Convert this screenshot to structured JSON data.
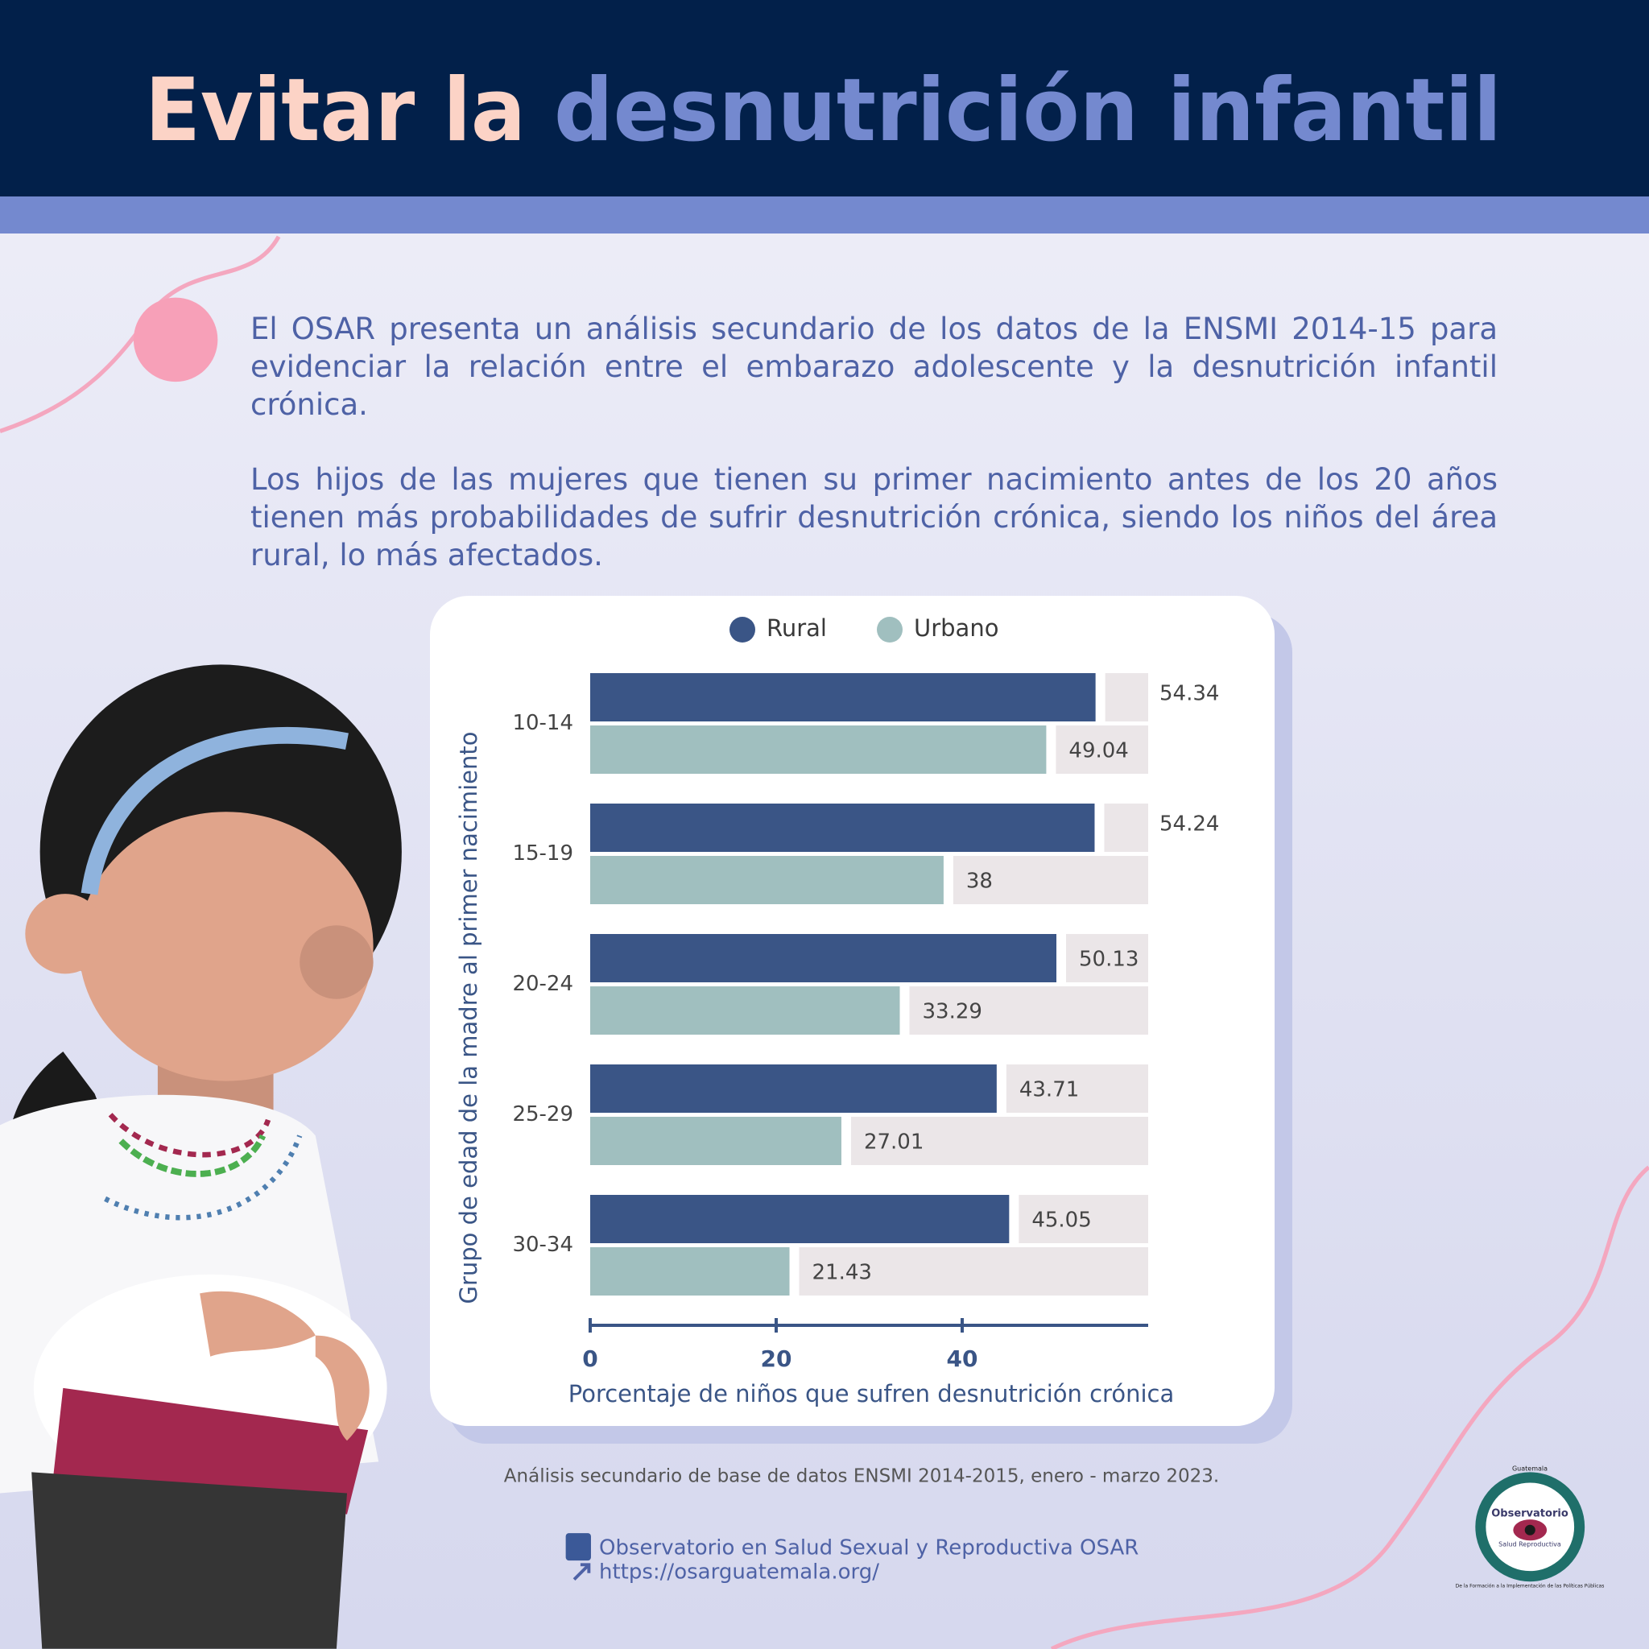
{
  "header": {
    "title": [
      "Evitar la",
      "desnutrición infantil"
    ]
  },
  "intro": [
    "El OSAR presenta un análisis secundario de los datos de la ENSMI 2014-15 para evidenciar la relación entre el embarazo adolescente y la desnutrición infantil crónica.",
    "Los hijos de las mujeres que tienen su primer nacimiento antes de los 20 años tienen más probabilidades de sufrir desnutrición crónica, siendo los niños del área rural, lo más afectados."
  ],
  "chart_data": {
    "type": "bar",
    "orientation": "horizontal",
    "categories": [
      "10-14",
      "15-19",
      "20-24",
      "25-29",
      "30-34"
    ],
    "series": [
      {
        "name": "Rural",
        "color": "#3a5586",
        "values": [
          54.34,
          54.24,
          50.13,
          43.71,
          45.05
        ]
      },
      {
        "name": "Urbano",
        "color": "#a0bfbf",
        "values": [
          49.04,
          38,
          33.29,
          27.01,
          21.43
        ]
      }
    ],
    "xlim": [
      0,
      60
    ],
    "xticks": [
      0,
      20,
      40
    ],
    "xlabel": "Porcentaje de niños que sufren desnutrición crónica",
    "ylabel": "Grupo de edad de la madre al primer nacimiento",
    "legend": "top",
    "value_labels_shown": true
  },
  "source": "Análisis secundario de base de datos ENSMI 2014-2015, enero - marzo 2023.",
  "footer": {
    "facebook": "Observatorio en Salud Sexual y Reproductiva OSAR",
    "website": "https://osarguatemala.org/"
  },
  "logo": {
    "top": "Guatemala",
    "name": "Observatorio",
    "sub": "Salud Reproductiva",
    "ring": "De la Formación a la Implementación de las Políticas Públicas"
  }
}
